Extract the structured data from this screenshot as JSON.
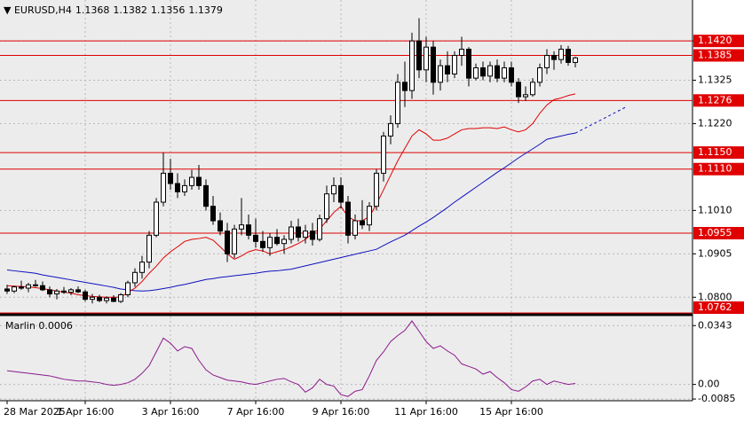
{
  "chart_data": {
    "type": "candlestick",
    "title": "EURUSD,H4",
    "ylim": [
      1.0762,
      1.1519
    ],
    "yticks": [
      {
        "value": 1.142,
        "label": "1.1420"
      },
      1.1325,
      {
        "value": 1.122,
        "label": "1.1220"
      },
      {
        "value": 1.101,
        "label": "1.1010"
      },
      1.0905,
      {
        "value": 1.08,
        "label": "1.0800"
      }
    ],
    "grid": true,
    "xticks": [
      {
        "value": 0,
        "label": "28 Mar 2025"
      },
      {
        "value": 11,
        "label": "1 Apr 16:00"
      },
      {
        "value": 23,
        "label": "3 Apr 16:00"
      },
      {
        "value": 35,
        "label": "7 Apr 16:00"
      },
      {
        "value": 47,
        "label": "9 Apr 16:00"
      },
      {
        "value": 59,
        "label": "11 Apr 16:00"
      },
      {
        "value": 71,
        "label": "15 Apr 16:00"
      }
    ],
    "levels": [
      {
        "value": 1.142,
        "label": "1.1420"
      },
      {
        "value": 1.1385,
        "label": "1.1385"
      },
      {
        "value": 1.1276,
        "label": "1.1276"
      },
      {
        "value": 1.115,
        "label": "1.1150"
      },
      {
        "value": 1.111,
        "label": "1.1110"
      },
      {
        "value": 1.0955,
        "label": "1.0955"
      },
      {
        "value": 1.0762,
        "label": "1.0762"
      }
    ],
    "level_color": "#e00000",
    "ohlc": [
      [
        1.082,
        1.083,
        1.0808,
        1.0815
      ],
      [
        1.0815,
        1.0828,
        1.081,
        1.0825
      ],
      [
        1.0825,
        1.084,
        1.0818,
        1.0822
      ],
      [
        1.0822,
        1.0835,
        1.0812,
        1.083
      ],
      [
        1.083,
        1.0842,
        1.0825,
        1.0828
      ],
      [
        1.0828,
        1.0838,
        1.0815,
        1.0818
      ],
      [
        1.0818,
        1.0826,
        1.08,
        1.0808
      ],
      [
        1.0808,
        1.082,
        1.0795,
        1.0815
      ],
      [
        1.0815,
        1.0825,
        1.0808,
        1.0812
      ],
      [
        1.0812,
        1.0822,
        1.0805,
        1.0818
      ],
      [
        1.0818,
        1.0826,
        1.081,
        1.0813
      ],
      [
        1.0813,
        1.0818,
        1.079,
        1.0795
      ],
      [
        1.0795,
        1.0808,
        1.0785,
        1.08
      ],
      [
        1.08,
        1.0806,
        1.0788,
        1.0792
      ],
      [
        1.0792,
        1.0802,
        1.0785,
        1.0798
      ],
      [
        1.0798,
        1.0805,
        1.0788,
        1.079
      ],
      [
        1.079,
        1.081,
        1.0786,
        1.0806
      ],
      [
        1.0806,
        1.084,
        1.08,
        1.0835
      ],
      [
        1.0835,
        1.087,
        1.0825,
        1.086
      ],
      [
        1.086,
        1.09,
        1.0845,
        1.0885
      ],
      [
        1.0885,
        1.096,
        1.087,
        1.095
      ],
      [
        1.095,
        1.104,
        1.0945,
        1.103
      ],
      [
        1.103,
        1.115,
        1.102,
        1.11
      ],
      [
        1.11,
        1.1135,
        1.106,
        1.1075
      ],
      [
        1.1075,
        1.11,
        1.104,
        1.1055
      ],
      [
        1.1055,
        1.1085,
        1.1045,
        1.107
      ],
      [
        1.107,
        1.1108,
        1.106,
        1.109
      ],
      [
        1.109,
        1.112,
        1.106,
        1.107
      ],
      [
        1.107,
        1.1085,
        1.101,
        1.102
      ],
      [
        1.102,
        1.1045,
        1.0975,
        1.0985
      ],
      [
        1.0985,
        1.1005,
        1.095,
        1.096
      ],
      [
        1.096,
        1.098,
        1.0885,
        1.0905
      ],
      [
        1.0905,
        1.0975,
        1.0895,
        1.0965
      ],
      [
        1.0965,
        1.104,
        1.095,
        1.0975
      ],
      [
        1.0975,
        1.1,
        1.094,
        1.095
      ],
      [
        1.095,
        1.099,
        1.092,
        1.0935
      ],
      [
        1.0935,
        1.096,
        1.091,
        1.092
      ],
      [
        1.092,
        1.0955,
        1.09,
        1.0945
      ],
      [
        1.0945,
        1.0965,
        1.0925,
        1.093
      ],
      [
        1.093,
        1.095,
        1.0905,
        1.094
      ],
      [
        1.094,
        1.0985,
        1.093,
        1.097
      ],
      [
        1.097,
        1.099,
        1.0935,
        1.0945
      ],
      [
        1.0945,
        1.0975,
        1.093,
        1.096
      ],
      [
        1.096,
        1.098,
        1.0925,
        1.094
      ],
      [
        1.094,
        1.1,
        1.0935,
        1.099
      ],
      [
        1.099,
        1.107,
        1.098,
        1.105
      ],
      [
        1.105,
        1.109,
        1.103,
        1.107
      ],
      [
        1.107,
        1.109,
        1.1015,
        1.103
      ],
      [
        1.103,
        1.1045,
        1.093,
        1.095
      ],
      [
        1.095,
        1.1,
        1.094,
        1.0985
      ],
      [
        1.0985,
        1.1035,
        1.0965,
        1.0975
      ],
      [
        1.0975,
        1.103,
        1.096,
        1.102
      ],
      [
        1.102,
        1.111,
        1.101,
        1.11
      ],
      [
        1.11,
        1.12,
        1.108,
        1.119
      ],
      [
        1.119,
        1.124,
        1.117,
        1.122
      ],
      [
        1.122,
        1.134,
        1.121,
        1.132
      ],
      [
        1.132,
        1.137,
        1.126,
        1.13
      ],
      [
        1.13,
        1.144,
        1.128,
        1.142
      ],
      [
        1.142,
        1.1475,
        1.133,
        1.135
      ],
      [
        1.135,
        1.143,
        1.132,
        1.1405
      ],
      [
        1.1405,
        1.142,
        1.129,
        1.132
      ],
      [
        1.132,
        1.1375,
        1.13,
        1.136
      ],
      [
        1.136,
        1.1395,
        1.132,
        1.134
      ],
      [
        1.134,
        1.1395,
        1.133,
        1.1385
      ],
      [
        1.1385,
        1.143,
        1.136,
        1.14
      ],
      [
        1.14,
        1.1405,
        1.131,
        1.133
      ],
      [
        1.133,
        1.1365,
        1.1325,
        1.1355
      ],
      [
        1.1355,
        1.137,
        1.1325,
        1.1335
      ],
      [
        1.1335,
        1.137,
        1.132,
        1.136
      ],
      [
        1.136,
        1.1375,
        1.132,
        1.133
      ],
      [
        1.133,
        1.137,
        1.132,
        1.1355
      ],
      [
        1.1355,
        1.137,
        1.131,
        1.132
      ],
      [
        1.132,
        1.133,
        1.127,
        1.1285
      ],
      [
        1.1285,
        1.131,
        1.1275,
        1.129
      ],
      [
        1.129,
        1.133,
        1.1285,
        1.132
      ],
      [
        1.132,
        1.1365,
        1.131,
        1.1355
      ],
      [
        1.1355,
        1.14,
        1.134,
        1.1385
      ],
      [
        1.1385,
        1.1395,
        1.135,
        1.1375
      ],
      [
        1.1375,
        1.141,
        1.1365,
        1.14
      ],
      [
        1.14,
        1.1408,
        1.136,
        1.1368
      ],
      [
        1.1368,
        1.1382,
        1.1356,
        1.1379
      ]
    ],
    "ma_fast": {
      "color": "#e00000",
      "values": [
        1.0828,
        1.0827,
        1.0826,
        1.0825,
        1.0823,
        1.0821,
        1.0818,
        1.0815,
        1.0812,
        1.081,
        1.0806,
        1.0804,
        1.0802,
        1.0801,
        1.08,
        1.08,
        1.08,
        1.0812,
        1.0822,
        1.0838,
        1.0858,
        1.0875,
        1.0895,
        1.091,
        1.0922,
        1.0935,
        1.094,
        1.0942,
        1.0945,
        1.0938,
        1.0922,
        1.0905,
        1.0892,
        1.09,
        1.091,
        1.0915,
        1.0912,
        1.0905,
        1.091,
        1.0915,
        1.0922,
        1.093,
        1.094,
        1.0955,
        1.0965,
        1.0985,
        1.1005,
        1.102,
        1.0995,
        1.0985,
        1.0985,
        1.0995,
        1.1025,
        1.106,
        1.1095,
        1.113,
        1.116,
        1.119,
        1.1205,
        1.1195,
        1.118,
        1.118,
        1.1185,
        1.1195,
        1.1205,
        1.1208,
        1.1208,
        1.121,
        1.121,
        1.1208,
        1.1212,
        1.1205,
        1.12,
        1.1205,
        1.122,
        1.1245,
        1.1265,
        1.1278,
        1.1282,
        1.1288,
        1.1292
      ]
    },
    "ma_slow": {
      "color": "#1010c0",
      "values": [
        1.0866,
        1.0864,
        1.0862,
        1.086,
        1.0858,
        1.0854,
        1.0851,
        1.0848,
        1.0845,
        1.0842,
        1.0839,
        1.0836,
        1.0833,
        1.083,
        1.0827,
        1.0824,
        1.082,
        1.0818,
        1.0816,
        1.0815,
        1.0816,
        1.0818,
        1.0821,
        1.0824,
        1.0828,
        1.0831,
        1.0835,
        1.0839,
        1.0843,
        1.0845,
        1.0848,
        1.085,
        1.0852,
        1.0854,
        1.0856,
        1.0858,
        1.0861,
        1.0863,
        1.0864,
        1.0866,
        1.0868,
        1.0872,
        1.0876,
        1.088,
        1.0884,
        1.0888,
        1.0892,
        1.0896,
        1.09,
        1.0904,
        1.0908,
        1.0912,
        1.0916,
        1.0925,
        1.0934,
        1.0942,
        1.095,
        1.0961,
        1.0972,
        1.0982,
        1.0993,
        1.1005,
        1.1017,
        1.103,
        1.1042,
        1.1054,
        1.1066,
        1.1078,
        1.109,
        1.1102,
        1.1113,
        1.1125,
        1.1137,
        1.1148,
        1.1159,
        1.117,
        1.1182,
        1.1186,
        1.119,
        1.1194,
        1.1197
      ]
    },
    "ma_slow_projection": {
      "color": "#1010c0",
      "x": [
        80,
        87
      ],
      "values": [
        1.1197,
        1.1259
      ]
    },
    "indicator": {
      "name": "Marlin",
      "color": "#8b1a8b",
      "ylim": [
        -0.0095,
        0.0396
      ],
      "yticks": [
        0.0343,
        {
          "value": 0,
          "label": "0.00"
        },
        -0.0085
      ],
      "values": [
        0.008,
        0.0075,
        0.007,
        0.0065,
        0.006,
        0.0055,
        0.005,
        0.004,
        0.003,
        0.0025,
        0.002,
        0.002,
        0.0015,
        0.001,
        0.0,
        -0.0005,
        0.0,
        0.001,
        0.003,
        0.0065,
        0.011,
        0.019,
        0.027,
        0.024,
        0.0195,
        0.022,
        0.021,
        0.014,
        0.0085,
        0.0055,
        0.004,
        0.0025,
        0.002,
        0.0015,
        0.0005,
        0.0,
        0.001,
        0.002,
        0.003,
        0.0035,
        0.0015,
        0.0,
        -0.0045,
        -0.002,
        0.003,
        0.0,
        -0.001,
        -0.006,
        -0.007,
        -0.004,
        -0.003,
        0.005,
        0.014,
        0.019,
        0.025,
        0.0285,
        0.0315,
        0.037,
        0.031,
        0.025,
        0.021,
        0.0225,
        0.0195,
        0.017,
        0.012,
        0.0105,
        0.009,
        0.006,
        0.0075,
        0.004,
        0.001,
        -0.003,
        -0.004,
        -0.0015,
        0.002,
        0.003,
        0.0,
        0.002,
        0.001,
        0.0,
        0.0006
      ]
    }
  }
}
